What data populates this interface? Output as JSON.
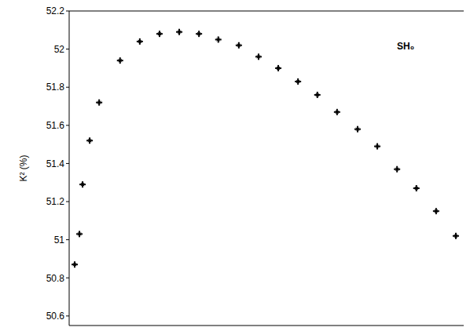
{
  "chart_data": {
    "type": "scatter",
    "y_label": "K² (%)",
    "annotation": "SH₀",
    "x": [
      1.4,
      2.6,
      3.4,
      5.2,
      7.6,
      12.9,
      17.9,
      22.9,
      27.9,
      32.9,
      37.8,
      43.0,
      48.0,
      53.0,
      58.0,
      62.9,
      67.9,
      73.1,
      78.1,
      83.1,
      88.0,
      93.0,
      98.0
    ],
    "values": [
      50.87,
      51.03,
      51.29,
      51.52,
      51.72,
      51.94,
      52.04,
      52.08,
      52.09,
      52.08,
      52.05,
      52.02,
      51.96,
      51.9,
      51.83,
      51.76,
      51.67,
      51.58,
      51.49,
      51.37,
      51.27,
      51.15,
      51.02
    ],
    "color": "#000000",
    "marker": "plus",
    "xlim": [
      0,
      100
    ],
    "ylim": [
      50.55,
      52.2
    ],
    "yticks": [
      50.6,
      50.8,
      51,
      51.2,
      51.4,
      51.6,
      51.8,
      52,
      52.2
    ],
    "tick_labels": "y",
    "grid": false
  }
}
